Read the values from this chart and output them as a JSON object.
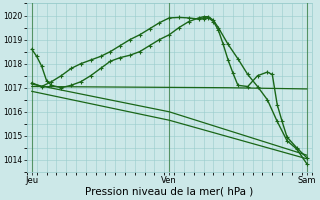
{
  "bg_color": "#cce8e8",
  "grid_color": "#99cccc",
  "line_color": "#1a6618",
  "xlabel": "Pression niveau de la mer( hPa )",
  "xlabel_fontsize": 7.5,
  "ylim": [
    1013.6,
    1020.4
  ],
  "yticks": [
    1014,
    1015,
    1016,
    1017,
    1018,
    1019,
    1020
  ],
  "xtick_labels": [
    "Jeu",
    "Ven",
    "Sam"
  ],
  "xtick_positions": [
    0,
    14,
    28
  ],
  "vline_positions": [
    0,
    14,
    28
  ],
  "series": [
    {
      "x": [
        0,
        0.5,
        1,
        1.5,
        2,
        3,
        4,
        5,
        6,
        7,
        8,
        9,
        10,
        11,
        12,
        13,
        14,
        15,
        16,
        17,
        17.5,
        18,
        18.5,
        19,
        20,
        21,
        22,
        23,
        24,
        25,
        26,
        27,
        28
      ],
      "y": [
        1018.6,
        1018.3,
        1017.9,
        1017.3,
        1017.1,
        1017.0,
        1017.1,
        1017.25,
        1017.5,
        1017.8,
        1018.1,
        1018.25,
        1018.35,
        1018.5,
        1018.75,
        1019.0,
        1019.2,
        1019.5,
        1019.75,
        1019.9,
        1019.95,
        1019.95,
        1019.8,
        1019.5,
        1018.8,
        1018.2,
        1017.55,
        1017.05,
        1016.5,
        1015.6,
        1014.8,
        1014.45,
        1013.85
      ],
      "marker": "+",
      "linewidth": 1.0,
      "markersize": 3.5
    },
    {
      "x": [
        0,
        14,
        28
      ],
      "y": [
        1017.15,
        1016.0,
        1014.2
      ],
      "marker": null,
      "linewidth": 0.9,
      "markersize": 0
    },
    {
      "x": [
        0,
        14,
        28
      ],
      "y": [
        1016.85,
        1015.65,
        1014.05
      ],
      "marker": null,
      "linewidth": 0.9,
      "markersize": 0
    },
    {
      "x": [
        0,
        20,
        28
      ],
      "y": [
        1017.05,
        1017.0,
        1016.95
      ],
      "marker": null,
      "linewidth": 0.9,
      "markersize": 0
    },
    {
      "x": [
        0,
        1,
        2,
        3,
        4,
        5,
        6,
        7,
        8,
        9,
        10,
        11,
        12,
        13,
        14,
        15,
        16,
        17,
        17.5,
        18,
        18.5,
        19,
        19.5,
        20,
        20.5,
        21,
        22,
        23,
        24,
        24.5,
        25,
        25.5,
        26,
        27,
        28
      ],
      "y": [
        1017.2,
        1017.05,
        1017.25,
        1017.5,
        1017.8,
        1018.0,
        1018.15,
        1018.3,
        1018.5,
        1018.75,
        1019.0,
        1019.2,
        1019.45,
        1019.7,
        1019.9,
        1019.92,
        1019.9,
        1019.85,
        1019.87,
        1019.9,
        1019.75,
        1019.4,
        1018.8,
        1018.15,
        1017.6,
        1017.1,
        1017.05,
        1017.5,
        1017.65,
        1017.55,
        1016.3,
        1015.6,
        1014.95,
        1014.5,
        1014.1
      ],
      "marker": "+",
      "linewidth": 1.0,
      "markersize": 3.5
    }
  ]
}
